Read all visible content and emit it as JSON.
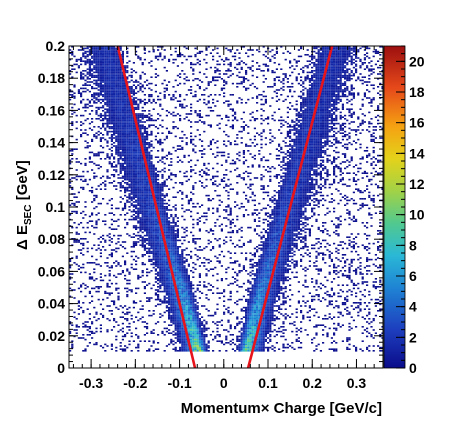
{
  "chart_data": {
    "type": "heatmap",
    "xlabel": "Momentum× Charge [GeV/c]",
    "ylabel": {
      "main": "Δ E",
      "sub": "SEC",
      "unit": " [GeV]"
    },
    "xlim": [
      -0.35,
      0.36
    ],
    "ylim": [
      0,
      0.2
    ],
    "x_ticks": [
      -0.3,
      -0.2,
      -0.1,
      0,
      0.1,
      0.2,
      0.3
    ],
    "x_tick_labels": [
      "-0.3",
      "-0.2",
      "-0.1",
      "0",
      "0.1",
      "0.2",
      "0.3"
    ],
    "y_ticks": [
      0,
      0.02,
      0.04,
      0.06,
      0.08,
      0.1,
      0.12,
      0.14,
      0.16,
      0.18,
      0.2
    ],
    "y_tick_labels": [
      "0",
      "0.02",
      "0.04",
      "0.06",
      "0.08",
      "0.1",
      "0.12",
      "0.14",
      "0.16",
      "0.18",
      "0.2"
    ],
    "colorbar": {
      "range": [
        0,
        21
      ],
      "ticks": [
        0,
        2,
        4,
        6,
        8,
        10,
        12,
        14,
        16,
        18,
        20
      ],
      "tick_labels": [
        "0",
        "2",
        "4",
        "6",
        "8",
        "10",
        "12",
        "14",
        "16",
        "18",
        "20"
      ],
      "colormap": "rainbow"
    },
    "bands": [
      {
        "side": "negative",
        "ridge": [
          {
            "y": 0.01,
            "x": -0.055
          },
          {
            "y": 0.05,
            "x": -0.095
          },
          {
            "y": 0.1,
            "x": -0.155
          },
          {
            "y": 0.2,
            "x": -0.265
          }
        ],
        "peak_counts": 10
      },
      {
        "side": "positive",
        "ridge": [
          {
            "y": 0.01,
            "x": 0.05
          },
          {
            "y": 0.05,
            "x": 0.085
          },
          {
            "y": 0.1,
            "x": 0.14
          },
          {
            "y": 0.2,
            "x": 0.245
          }
        ],
        "peak_counts": 9
      }
    ],
    "y_min_populated": 0.01,
    "cut_lines": [
      {
        "color": "#e8141b",
        "points": [
          [
            -0.065,
            0
          ],
          [
            -0.24,
            0.2
          ]
        ]
      },
      {
        "color": "#e8141b",
        "points": [
          [
            0.055,
            0
          ],
          [
            0.245,
            0.2
          ]
        ]
      }
    ]
  }
}
